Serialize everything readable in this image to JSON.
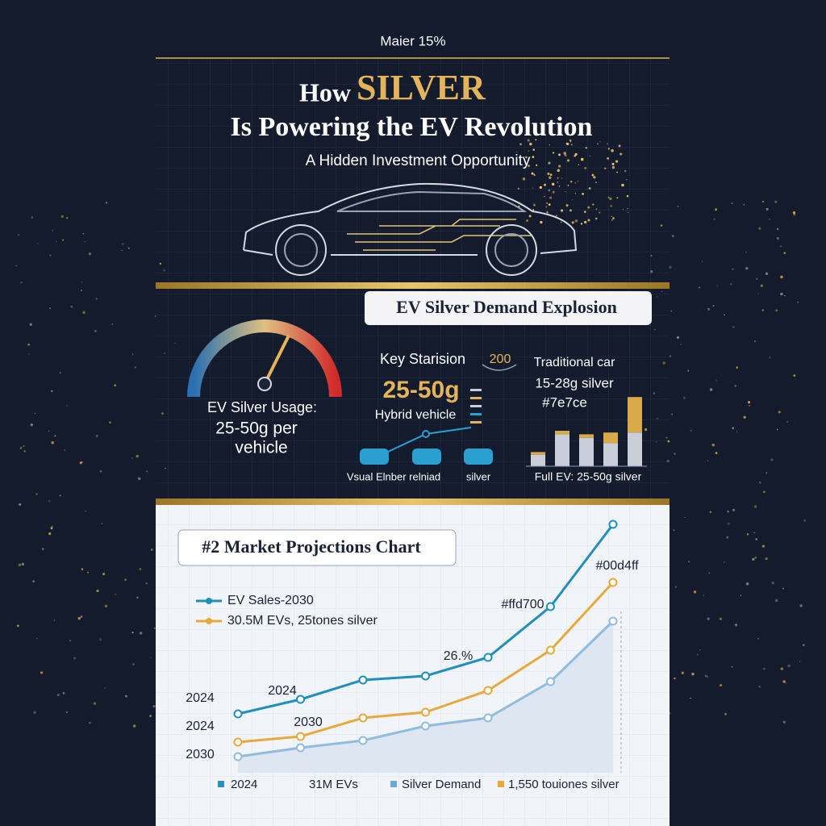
{
  "header": {
    "kicker": "Maier 15%",
    "title_pre": "How",
    "title_highlight": "SILVER",
    "title_line2": "Is Powering the EV Revolution",
    "subtitle": "A Hidden Investment Opportunity"
  },
  "demand": {
    "banner": "EV Silver Demand Explosion",
    "gauge_label_1": "EV Silver Usage:",
    "gauge_label_2": "25-50g per",
    "gauge_label_3": "vehicle",
    "key_stats": "Key Starision",
    "badge": "200",
    "traditional": "Traditional car",
    "traditional_value": "15-28g silver",
    "traditional_code": "#7e7ce",
    "big_value": "25-50g",
    "hybrid": "Hybrid vehicle",
    "cars_caption": "Vsual Elnber relniad",
    "cars_caption_2": "silver",
    "full_ev": "Full EV: 25-50g silver",
    "mini_chart": {
      "type": "bar",
      "ylim": [
        0,
        80
      ],
      "series": [
        {
          "color": "#c9ced8",
          "values": [
            13,
            36,
            32,
            26,
            38
          ]
        },
        {
          "color": "#d9aa4a",
          "values": [
            3,
            4,
            4,
            12,
            40
          ]
        }
      ]
    }
  },
  "chart_data": {
    "type": "line",
    "title": "#2 Market Projections Chart",
    "categories": [
      null,
      null,
      null,
      null,
      null,
      null,
      null
    ],
    "ylim": [
      0,
      400
    ],
    "series": [
      {
        "name": "EV Sales-2030",
        "color": "#1f8fc0",
        "values": [
          115,
          133,
          157,
          162,
          185,
          248,
          350
        ]
      },
      {
        "name": "30.5M EVs, 25tones silver",
        "color": "#e8a93a",
        "values": [
          80,
          87,
          110,
          117,
          144,
          194,
          278
        ]
      },
      {
        "color": "#8fbce0",
        "values": [
          62,
          73,
          82,
          100,
          110,
          155,
          230
        ]
      }
    ],
    "annotations": [
      "2024",
      "2030",
      "26.%",
      "#ffd700",
      "#00d4ff"
    ],
    "side_labels": [
      "2024",
      "2024",
      "2030"
    ],
    "bottom_legend": [
      "2024",
      "31M EVs",
      "Silver Demand",
      "1,550 touiones silver"
    ]
  }
}
